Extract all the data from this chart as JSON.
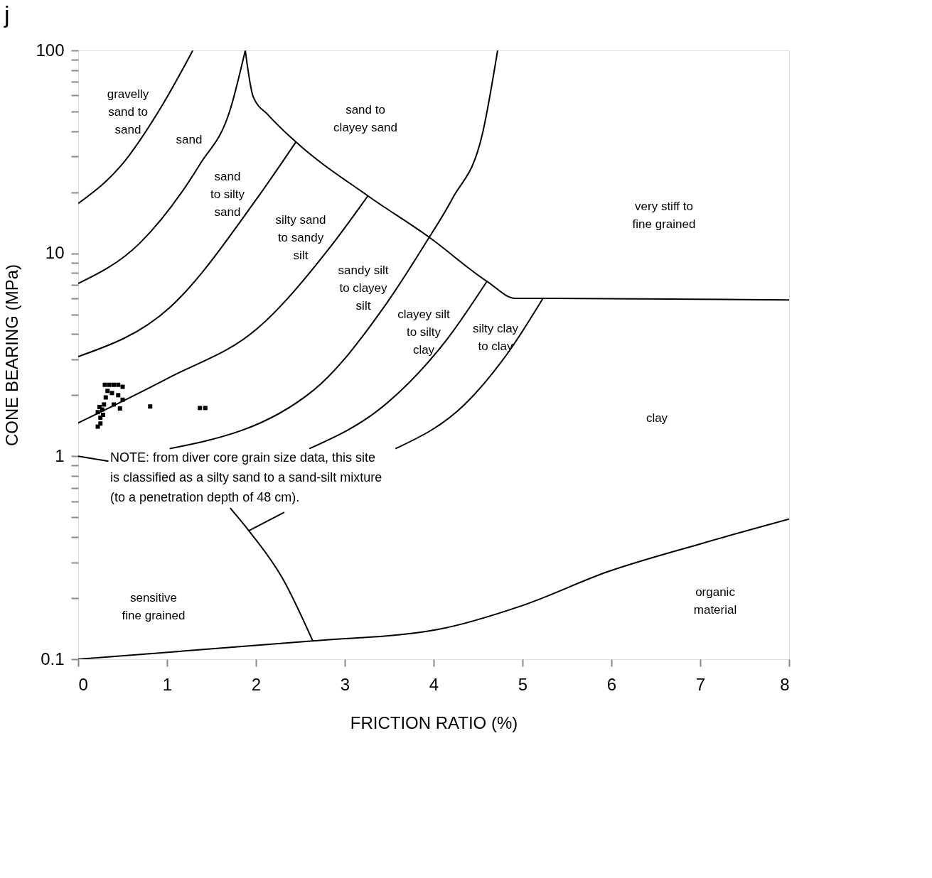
{
  "chart_data": {
    "type": "scatter",
    "title": "j",
    "xlabel": "FRICTION RATIO (%)",
    "ylabel": "CONE BEARING (MPa)",
    "xlim": [
      0,
      8
    ],
    "xticks": [
      0,
      1,
      2,
      3,
      4,
      5,
      6,
      7,
      8
    ],
    "ylim": [
      0.1,
      100
    ],
    "log": "y",
    "yticks": [
      0.1,
      {
        "value": 0.2,
        "label": null
      },
      {
        "value": 0.3,
        "label": null
      },
      {
        "value": 0.4,
        "label": null
      },
      {
        "value": 0.5,
        "label": null
      },
      {
        "value": 0.6,
        "label": null
      },
      {
        "value": 0.7,
        "label": null
      },
      {
        "value": 0.8,
        "label": null
      },
      {
        "value": 0.9,
        "label": null
      },
      1,
      {
        "value": 2,
        "label": null
      },
      {
        "value": 3,
        "label": null
      },
      {
        "value": 4,
        "label": null
      },
      {
        "value": 5,
        "label": null
      },
      {
        "value": 6,
        "label": null
      },
      {
        "value": 7,
        "label": null
      },
      {
        "value": 8,
        "label": null
      },
      {
        "value": 9,
        "label": null
      },
      10,
      {
        "value": 20,
        "label": null
      },
      {
        "value": 30,
        "label": null
      },
      {
        "value": 40,
        "label": null
      },
      {
        "value": 50,
        "label": null
      },
      {
        "value": 60,
        "label": null
      },
      {
        "value": 70,
        "label": null
      },
      {
        "value": 80,
        "label": null
      },
      {
        "value": 90,
        "label": null
      },
      100
    ],
    "grid": false,
    "series": [
      {
        "marker": "square",
        "color": "#000000",
        "x": [
          0.3,
          0.35,
          0.4,
          0.45,
          0.5,
          0.33,
          0.38,
          0.45,
          0.5,
          0.31,
          0.29,
          0.27,
          0.24,
          0.22,
          0.25,
          0.28,
          0.4,
          0.47,
          0.25,
          0.22,
          0.81,
          1.37,
          1.43
        ],
        "values": [
          2.25,
          2.25,
          2.25,
          2.25,
          2.2,
          2.1,
          2.05,
          2.0,
          1.9,
          1.95,
          1.8,
          1.7,
          1.75,
          1.65,
          1.55,
          1.6,
          1.8,
          1.72,
          1.45,
          1.4,
          1.76,
          1.73,
          1.73
        ]
      },
      {
        "type": "line",
        "color": "#000000",
        "x": [
          0,
          0.48,
          0.96,
          1.29
        ],
        "values": [
          17.6,
          27,
          55,
          100
        ]
      },
      {
        "type": "line",
        "color": "#000000",
        "x": [
          0,
          0.69,
          1.37,
          1.71,
          1.88
        ],
        "values": [
          7.1,
          11.2,
          27.5,
          51,
          100
        ]
      },
      {
        "type": "line",
        "color": "#000000",
        "x": [
          0,
          1.03,
          2.01,
          2.45
        ],
        "values": [
          3.1,
          5.41,
          18.6,
          35.4
        ]
      },
      {
        "type": "line",
        "color": "#000000",
        "x": [
          1.88,
          1.97,
          2.14,
          2.45,
          3.26,
          3.95,
          4.6,
          4.92,
          5.23,
          8
        ],
        "values": [
          100,
          59,
          48,
          35.4,
          19.2,
          12.0,
          7.28,
          6.0,
          6.0,
          5.9
        ]
      },
      {
        "type": "line",
        "color": "#000000",
        "x": [
          0,
          1.03,
          2.01,
          2.84,
          3.26
        ],
        "values": [
          1.46,
          2.45,
          4.24,
          10.8,
          19.2
        ]
      },
      {
        "type": "line",
        "color": "#000000",
        "x": [
          1.03,
          2.65,
          3.47,
          3.95
        ],
        "values": [
          1.09,
          2.12,
          5.67,
          12.0
        ]
      },
      {
        "type": "line",
        "color": "#000000",
        "x": [
          2.6,
          3.47,
          4.16,
          4.6
        ],
        "values": [
          1.09,
          1.82,
          3.82,
          7.28
        ]
      },
      {
        "type": "line",
        "color": "#000000",
        "x": [
          3.57,
          4.36,
          4.85,
          5.23
        ],
        "values": [
          1.09,
          1.82,
          3.3,
          6.0
        ]
      },
      {
        "type": "line",
        "color": "#000000",
        "x": [
          3.95,
          4.21,
          4.55,
          4.72
        ],
        "values": [
          12.0,
          18.6,
          39,
          100
        ]
      },
      {
        "type": "line",
        "color": "#000000",
        "x": [
          1.71,
          1.92,
          2.3,
          2.64
        ],
        "values": [
          0.556,
          0.43,
          0.25,
          0.123
        ]
      },
      {
        "type": "line",
        "color": "#000000",
        "x": [
          1.92,
          2.32
        ],
        "values": [
          0.43,
          0.53
        ]
      },
      {
        "type": "line",
        "color": "#000000",
        "x": [
          0,
          2.64,
          4.04,
          5.0,
          5.96,
          7.0,
          8.0
        ],
        "values": [
          0.1,
          0.123,
          0.14,
          0.184,
          0.27,
          0.37,
          0.49
        ]
      },
      {
        "type": "line",
        "color": "#000000",
        "x": [
          0,
          0.34
        ],
        "values": [
          1.0,
          0.946
        ]
      }
    ],
    "annotations": [
      "gravelly\nsand to\nsand",
      "sand",
      "sand\nto silty\nsand",
      "silty sand\nto sandy\nsilt",
      "sandy silt\nto clayey\nsilt",
      "clayey silt\nto silty\nclay",
      "silty clay\nto clay",
      "sand to\nclayey sand",
      "very stiff to\nfine grained",
      "clay",
      "sensitive\nfine grained",
      "organic\nmaterial",
      "NOTE:  from diver core grain size data, this site\nis classified as a silty sand  to a sand-silt mixture\n(to a penetration depth of 48 cm)."
    ]
  }
}
